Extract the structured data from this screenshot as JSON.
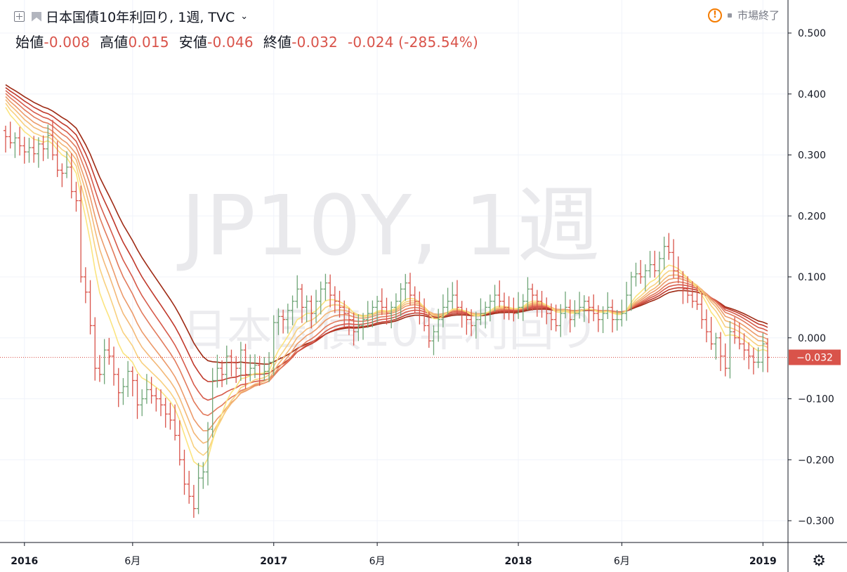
{
  "header": {
    "symbol_title": "日本国債10年利回り, 1週, TVC",
    "open_label": "始値",
    "open_value": "-0.008",
    "high_label": "高値",
    "high_value": "0.015",
    "low_label": "安値",
    "low_value": "-0.046",
    "close_label": "終値",
    "close_value": "-0.032",
    "change": "-0.024 (-285.54%)",
    "market_status": "市場終了"
  },
  "watermark": {
    "line1": "JP10Y, 1週",
    "line2": "日本国債10年利回り"
  },
  "colors": {
    "up": "#6fa577",
    "down": "#d9534a",
    "ribbon": [
      "#9e2a14",
      "#c0392b",
      "#d65a4a",
      "#e27a5c",
      "#ec9a6a",
      "#f3b877",
      "#f8d07f",
      "#fbe47f"
    ]
  },
  "price_label": "-0.032",
  "settings_icon": "gear-icon",
  "chart_data": {
    "type": "bar",
    "yaxis_ticks": [
      "0.500",
      "0.400",
      "0.300",
      "0.200",
      "0.100",
      "0.000",
      "-0.100",
      "-0.200",
      "-0.300"
    ],
    "ylim": [
      -0.3,
      0.5
    ],
    "xaxis_ticks": [
      {
        "label": "2016",
        "bold": true,
        "index": 4
      },
      {
        "label": "6月",
        "bold": false,
        "index": 27
      },
      {
        "label": "2017",
        "bold": true,
        "index": 57
      },
      {
        "label": "6月",
        "bold": false,
        "index": 79
      },
      {
        "label": "2018",
        "bold": true,
        "index": 109
      },
      {
        "label": "6月",
        "bold": false,
        "index": 131
      },
      {
        "label": "2019",
        "bold": true,
        "index": 161
      }
    ],
    "last_close": -0.032,
    "closes": [
      0.33,
      0.32,
      0.328,
      0.315,
      0.305,
      0.312,
      0.302,
      0.318,
      0.31,
      0.332,
      0.3,
      0.275,
      0.27,
      0.28,
      0.24,
      0.225,
      0.1,
      0.075,
      0.02,
      -0.05,
      -0.06,
      -0.02,
      -0.03,
      -0.06,
      -0.09,
      -0.08,
      -0.055,
      -0.07,
      -0.11,
      -0.1,
      -0.085,
      -0.095,
      -0.1,
      -0.11,
      -0.125,
      -0.135,
      -0.16,
      -0.2,
      -0.24,
      -0.26,
      -0.28,
      -0.23,
      -0.22,
      -0.15,
      -0.07,
      -0.05,
      -0.06,
      -0.03,
      -0.04,
      -0.05,
      -0.02,
      -0.06,
      -0.05,
      -0.045,
      -0.06,
      -0.055,
      -0.04,
      0.025,
      0.035,
      0.03,
      0.045,
      0.06,
      0.08,
      0.05,
      0.06,
      0.04,
      0.06,
      0.08,
      0.09,
      0.07,
      0.06,
      0.05,
      0.04,
      0.03,
      0.01,
      0.02,
      0.03,
      0.04,
      0.05,
      0.06,
      0.05,
      0.04,
      0.05,
      0.06,
      0.08,
      0.09,
      0.07,
      0.06,
      0.04,
      0.02,
      -0.005,
      0.01,
      0.03,
      0.05,
      0.06,
      0.07,
      0.05,
      0.04,
      0.03,
      0.02,
      0.03,
      0.04,
      0.05,
      0.06,
      0.07,
      0.06,
      0.05,
      0.045,
      0.04,
      0.05,
      0.06,
      0.08,
      0.07,
      0.06,
      0.05,
      0.04,
      0.03,
      0.02,
      0.04,
      0.05,
      0.03,
      0.04,
      0.05,
      0.06,
      0.05,
      0.04,
      0.03,
      0.04,
      0.05,
      0.03,
      0.03,
      0.04,
      0.07,
      0.1,
      0.105,
      0.1,
      0.11,
      0.12,
      0.11,
      0.13,
      0.15,
      0.14,
      0.11,
      0.1,
      0.08,
      0.07,
      0.06,
      0.055,
      0.03,
      0.01,
      -0.01,
      0.0,
      -0.03,
      -0.05,
      0.01,
      0.0,
      -0.01,
      -0.02,
      -0.03,
      -0.04,
      -0.04,
      -0.01,
      -0.032
    ]
  }
}
